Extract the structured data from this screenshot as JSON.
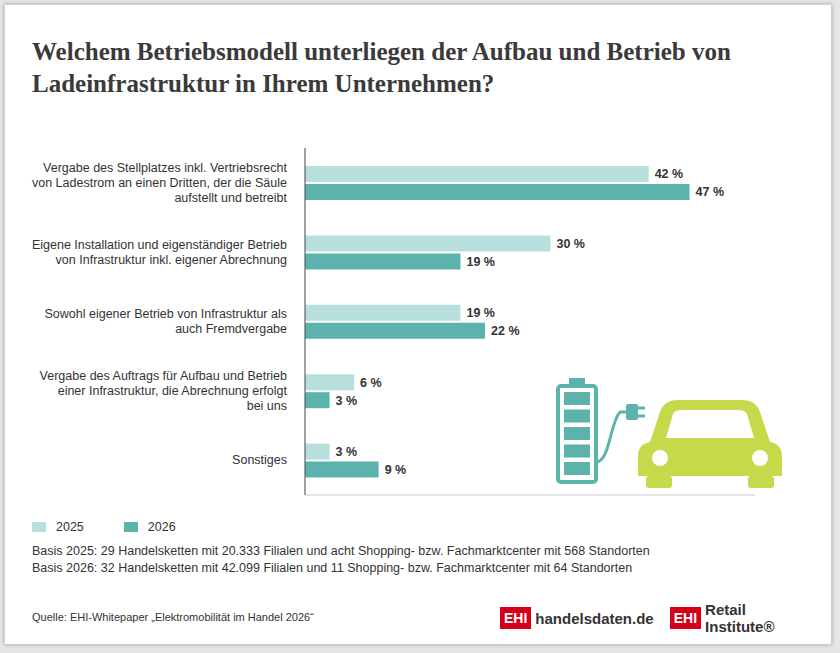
{
  "chart_data": {
    "type": "bar",
    "orientation": "horizontal",
    "title": "Welchem Betriebsmodell unterliegen der Aufbau und Betrieb von Ladeinfrastruktur in Ihrem Unternehmen?",
    "categories": [
      "Vergabe des Stellplatzes inkl. Vertriebsrecht von Ladestrom an einen Dritten, der die Säule aufstellt und betreibt",
      "Eigene Installation und eigenständiger Betrieb von Infrastruktur inkl. eigener Abrechnung",
      "Sowohl eigener Betrieb von Infrastruktur als auch Fremdvergabe",
      "Vergabe des Auftrags für Aufbau und Betrieb einer Infrastruktur, die Abrechnung erfolgt bei uns",
      "Sonstiges"
    ],
    "series": [
      {
        "name": "2025",
        "color": "#b7dfdb",
        "values": [
          42,
          30,
          19,
          6,
          3
        ],
        "value_labels": [
          "42 %",
          "30 %",
          "19 %",
          "6 %",
          "3 %"
        ]
      },
      {
        "name": "2026",
        "color": "#5cb3ab",
        "values": [
          47,
          19,
          22,
          3,
          9
        ],
        "value_labels": [
          "47 %",
          "19 %",
          "22 %",
          "3 %",
          "9 %"
        ]
      }
    ],
    "xlim": [
      0,
      55
    ],
    "data_labels": true,
    "tick_labels": "y",
    "grid": false,
    "legend": "bottom-left",
    "notes": [
      "Basis 2025: 29 Handelsketten mit 20.333 Filialen und acht Shopping- bzw. Fachmarktcenter mit 568 Standorten",
      "Basis 2026: 32 Handelsketten mit 42.099 Filialen und 11 Shopping- bzw. Fachmarktcenter mit 64 Standorten"
    ],
    "source": "Quelle: EHI-Whitepaper „Elektromobilität im Handel 2026“",
    "logos": [
      {
        "mark": "EHI",
        "text": "handelsdaten.de"
      },
      {
        "mark": "EHI",
        "text": "Retail Institute®"
      }
    ]
  }
}
